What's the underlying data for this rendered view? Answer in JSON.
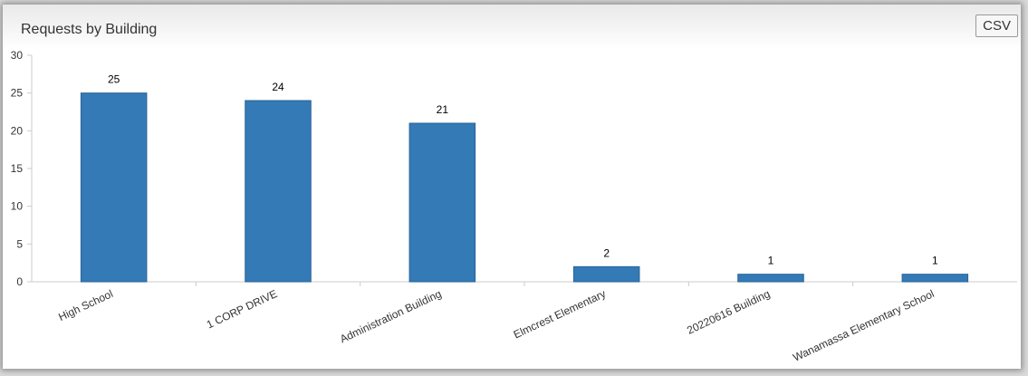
{
  "panel": {
    "title": "Requests by Building",
    "csv_label": "CSV"
  },
  "colors": {
    "bar": "#337ab7",
    "bar_stroke": "#2a6496",
    "axis": "#cccccc",
    "text": "#333333"
  },
  "chart_data": {
    "type": "bar",
    "title": "Requests by Building",
    "xlabel": "",
    "ylabel": "",
    "categories": [
      "High School",
      "1 CORP DRIVE",
      "Administration Building",
      "Elmcrest Elementary",
      "20220616 Building",
      "Wanamassa Elementary School"
    ],
    "values": [
      25,
      24,
      21,
      2,
      1,
      1
    ],
    "ylim": [
      0,
      30
    ],
    "yticks": [
      0,
      5,
      10,
      15,
      20,
      25,
      30
    ],
    "grid": false,
    "legend": "none"
  }
}
